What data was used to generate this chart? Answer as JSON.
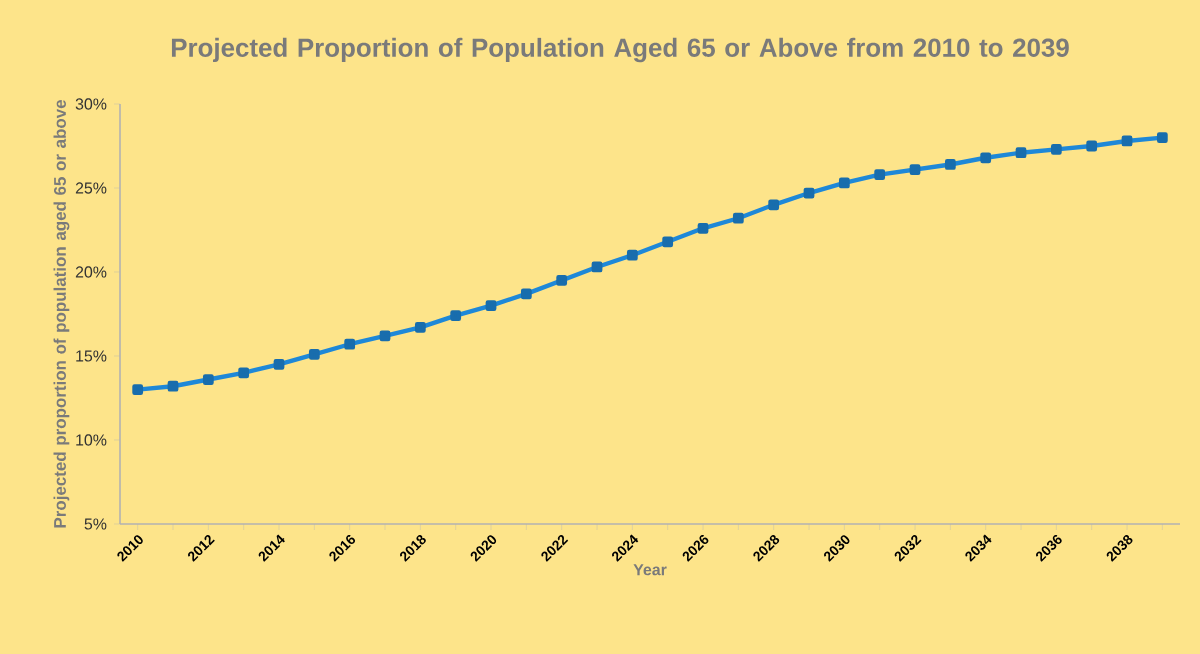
{
  "chart_data": {
    "type": "line",
    "title": "Projected Proportion of Population Aged 65 or Above from 2010 to 2039",
    "xlabel": "Year",
    "ylabel": "Projected proportion of population aged 65 or above",
    "categories": [
      "2010",
      null,
      "2012",
      null,
      "2014",
      null,
      "2016",
      null,
      "2018",
      null,
      "2020",
      null,
      "2022",
      null,
      "2024",
      null,
      "2026",
      null,
      "2028",
      null,
      "2030",
      null,
      "2032",
      null,
      "2034",
      null,
      "2036",
      null,
      "2038",
      null
    ],
    "series": [
      {
        "color": "#1e88d8",
        "values": [
          13.0,
          13.2,
          13.6,
          14.0,
          14.5,
          15.1,
          15.7,
          16.2,
          16.7,
          17.4,
          18.0,
          18.7,
          19.5,
          20.3,
          21.0,
          21.8,
          22.6,
          23.2,
          24.0,
          24.7,
          25.3,
          25.8,
          26.1,
          26.4,
          26.8,
          27.1,
          27.3,
          27.5,
          27.8,
          28.0
        ]
      }
    ],
    "ylim": [
      5,
      30
    ],
    "yticks": [
      {
        "value": 5,
        "label": "5%"
      },
      {
        "value": 10,
        "label": "10%"
      },
      {
        "value": 15,
        "label": "15%"
      },
      {
        "value": 20,
        "label": "20%"
      },
      {
        "value": 25,
        "label": "25%"
      },
      {
        "value": 30,
        "label": "30%"
      }
    ],
    "marker": "square",
    "line_style": "solid",
    "grid": false
  }
}
